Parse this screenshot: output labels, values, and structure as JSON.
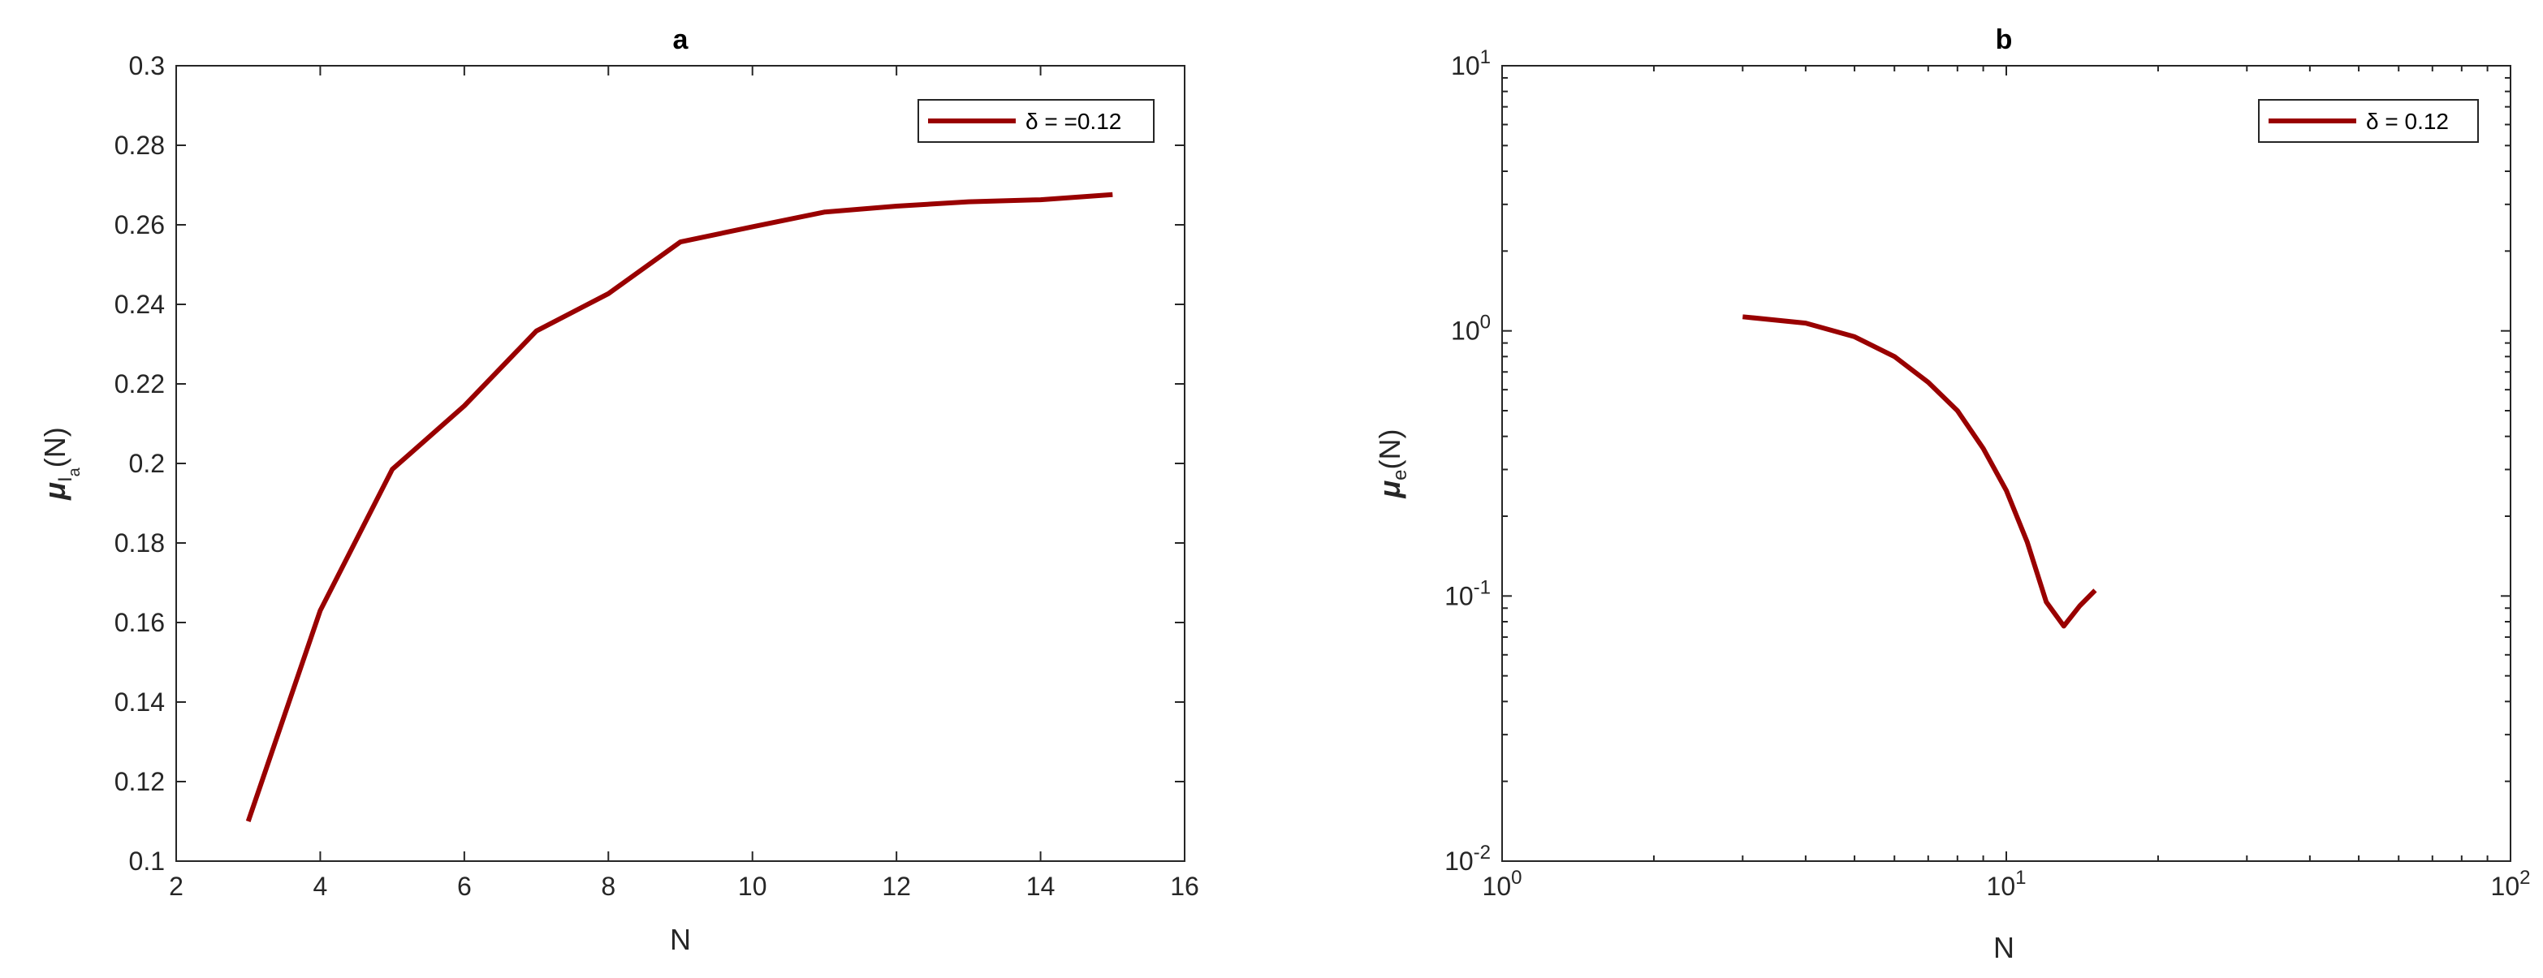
{
  "chart_data": [
    {
      "panel": "a",
      "type": "line",
      "title": "a",
      "xlabel": "N",
      "ylabel": "μIa(N)",
      "ylabel_parts": {
        "mu": "μ",
        "sub1": "I",
        "sub2": "a",
        "arg": "(N)"
      },
      "xlim": [
        2,
        16
      ],
      "ylim": [
        0.1,
        0.3
      ],
      "xscale": "linear",
      "yscale": "linear",
      "xticks": [
        2,
        4,
        6,
        8,
        10,
        12,
        14,
        16
      ],
      "xtick_labels": [
        "2",
        "4",
        "6",
        "8",
        "10",
        "12",
        "14",
        "16"
      ],
      "yticks": [
        0.1,
        0.12,
        0.14,
        0.16,
        0.18,
        0.2,
        0.22,
        0.24,
        0.26,
        0.28,
        0.3
      ],
      "ytick_labels": [
        "0.1",
        "0.12",
        "0.14",
        "0.16",
        "0.18",
        "0.2",
        "0.22",
        "0.24",
        "0.26",
        "0.28",
        "0.3"
      ],
      "grid": false,
      "legend_position": "top-right",
      "series": [
        {
          "name": "δ = =0.12",
          "color": "#990000",
          "x": [
            3,
            4,
            5,
            6,
            7,
            8,
            9,
            10,
            11,
            12,
            13,
            14,
            15
          ],
          "y": [
            0.11,
            0.163,
            0.1985,
            0.2145,
            0.2333,
            0.2427,
            0.2557,
            0.2595,
            0.2632,
            0.2647,
            0.2658,
            0.2663,
            0.2676
          ]
        }
      ]
    },
    {
      "panel": "b",
      "type": "line",
      "title": "b",
      "xlabel": "N",
      "ylabel": "μe(N)",
      "ylabel_parts": {
        "mu": "μ",
        "sub": "e",
        "arg": "(N)"
      },
      "xlim": [
        1,
        100
      ],
      "ylim": [
        0.01,
        10
      ],
      "xscale": "log",
      "yscale": "log",
      "xticks": [
        1,
        10,
        100
      ],
      "xtick_labels": [
        {
          "base": "10",
          "exp": "0"
        },
        {
          "base": "10",
          "exp": "1"
        },
        {
          "base": "10",
          "exp": "2"
        }
      ],
      "yticks": [
        0.01,
        0.1,
        1,
        10
      ],
      "ytick_labels": [
        {
          "base": "10",
          "exp": "-2"
        },
        {
          "base": "10",
          "exp": "-1"
        },
        {
          "base": "10",
          "exp": "0"
        },
        {
          "base": "10",
          "exp": "1"
        }
      ],
      "grid": false,
      "legend_position": "top-right",
      "series": [
        {
          "name": "δ = 0.12",
          "color": "#990000",
          "x": [
            3,
            4,
            5,
            6,
            7,
            8,
            9,
            10,
            11,
            12,
            13,
            14,
            15
          ],
          "y": [
            1.13,
            1.07,
            0.95,
            0.8,
            0.64,
            0.5,
            0.36,
            0.25,
            0.16,
            0.095,
            0.077,
            0.092,
            0.105
          ]
        }
      ]
    }
  ]
}
